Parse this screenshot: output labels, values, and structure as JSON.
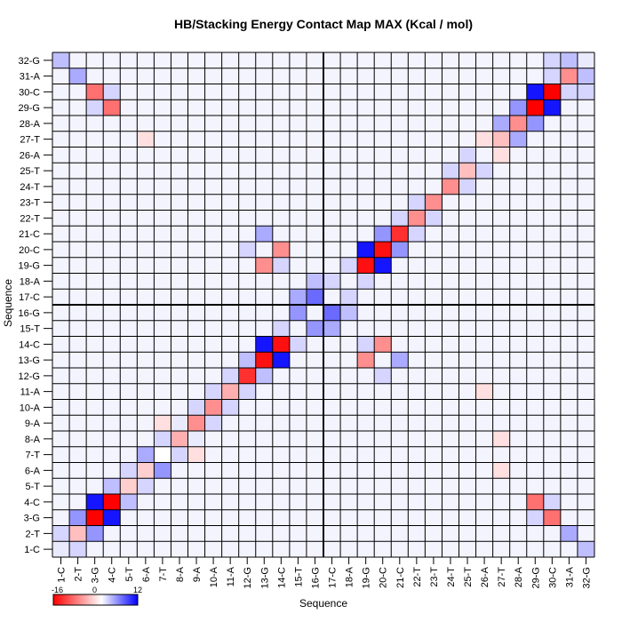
{
  "chart_data": {
    "type": "heatmap",
    "title": "HB/Stacking Energy Contact Map MAX (Kcal / mol)",
    "xlabel": "Sequence",
    "ylabel": "Sequence",
    "labels": [
      "1-C",
      "2-T",
      "3-G",
      "4-C",
      "5-T",
      "6-A",
      "7-T",
      "8-A",
      "9-A",
      "10-A",
      "11-A",
      "12-G",
      "13-G",
      "14-C",
      "15-T",
      "16-G",
      "17-C",
      "18-A",
      "19-G",
      "20-C",
      "21-C",
      "22-T",
      "23-T",
      "24-T",
      "25-T",
      "26-A",
      "27-T",
      "28-A",
      "29-G",
      "30-C",
      "31-A",
      "32-G"
    ],
    "x_tick_labels": [
      "1-C",
      "2-T",
      "3-G",
      "4-C",
      "5-T",
      "6-A",
      "7-T",
      "8-A",
      "9-A",
      "10-A",
      "11-A",
      "12-G",
      "13-G",
      "14-C",
      "15-T",
      "16-G",
      "17-C",
      "18-A",
      "19-G",
      "20-C",
      "21-C",
      "22-T",
      "23-T",
      "24-T",
      "25-T",
      "26-A",
      "27-T",
      "28-A",
      "29-G",
      "30-C",
      "31-A",
      "32-G"
    ],
    "x_tick_label_3": "3-G",
    "colorbar": {
      "min": -16,
      "mid": 0,
      "max": 12,
      "min_label": "-16",
      "mid_label": "0",
      "max_label": "12"
    },
    "colors": {
      "negative": "#ff0000",
      "zero": "#ffffff",
      "positive": "#0000ff",
      "background": "#f4f4ff",
      "grid": "#000000"
    },
    "background_value": 0.5,
    "grid": true,
    "cells": [
      [
        3,
        3,
        -16
      ],
      [
        4,
        4,
        -16
      ],
      [
        3,
        4,
        11
      ],
      [
        4,
        3,
        11
      ],
      [
        29,
        29,
        -16
      ],
      [
        30,
        30,
        -16
      ],
      [
        29,
        30,
        11
      ],
      [
        30,
        29,
        11
      ],
      [
        13,
        13,
        -15
      ],
      [
        14,
        14,
        -15
      ],
      [
        13,
        14,
        11
      ],
      [
        14,
        13,
        11
      ],
      [
        19,
        19,
        -15
      ],
      [
        20,
        20,
        -15
      ],
      [
        19,
        20,
        11
      ],
      [
        20,
        19,
        11
      ],
      [
        12,
        12,
        -13
      ],
      [
        21,
        21,
        -13
      ],
      [
        3,
        30,
        -9
      ],
      [
        30,
        3,
        -9
      ],
      [
        4,
        29,
        -9
      ],
      [
        29,
        4,
        -9
      ],
      [
        13,
        19,
        -7
      ],
      [
        19,
        13,
        -7
      ],
      [
        14,
        20,
        -7
      ],
      [
        20,
        14,
        -7
      ],
      [
        10,
        10,
        -7
      ],
      [
        11,
        11,
        -5
      ],
      [
        9,
        9,
        -7
      ],
      [
        8,
        8,
        -5
      ],
      [
        22,
        22,
        -7
      ],
      [
        23,
        23,
        -7
      ],
      [
        24,
        24,
        -7
      ],
      [
        25,
        25,
        -4
      ],
      [
        27,
        27,
        -4
      ],
      [
        28,
        28,
        -7
      ],
      [
        31,
        31,
        -7
      ],
      [
        2,
        2,
        -4
      ],
      [
        5,
        5,
        -3
      ],
      [
        6,
        6,
        -3
      ],
      [
        1,
        1,
        1
      ],
      [
        32,
        32,
        1
      ],
      [
        1,
        32,
        3
      ],
      [
        32,
        1,
        3
      ],
      [
        2,
        31,
        4
      ],
      [
        31,
        2,
        4
      ],
      [
        3,
        2,
        5
      ],
      [
        2,
        3,
        5
      ],
      [
        29,
        28,
        5
      ],
      [
        28,
        29,
        5
      ],
      [
        31,
        32,
        3
      ],
      [
        32,
        31,
        3
      ],
      [
        4,
        5,
        3
      ],
      [
        5,
        4,
        3
      ],
      [
        5,
        6,
        5
      ],
      [
        6,
        7,
        5
      ],
      [
        7,
        6,
        4
      ],
      [
        7,
        7,
        0
      ],
      [
        16,
        17,
        7
      ],
      [
        17,
        16,
        7
      ],
      [
        15,
        16,
        5
      ],
      [
        16,
        15,
        5
      ],
      [
        15,
        17,
        4
      ],
      [
        17,
        15,
        4
      ],
      [
        12,
        13,
        3
      ],
      [
        13,
        12,
        3
      ],
      [
        20,
        21,
        5
      ],
      [
        21,
        20,
        5
      ],
      [
        14,
        15,
        2
      ],
      [
        15,
        14,
        2
      ],
      [
        13,
        21,
        4
      ],
      [
        21,
        13,
        4
      ],
      [
        12,
        20,
        2
      ],
      [
        20,
        12,
        2
      ],
      [
        26,
        27,
        -2
      ],
      [
        27,
        26,
        -2
      ],
      [
        6,
        27,
        -2
      ],
      [
        27,
        6,
        -2
      ],
      [
        7,
        9,
        -2
      ],
      [
        9,
        7,
        -2
      ],
      [
        8,
        27,
        -2
      ],
      [
        11,
        26,
        -2
      ],
      [
        27,
        28,
        4
      ],
      [
        28,
        27,
        4
      ],
      [
        25,
        26,
        2
      ],
      [
        26,
        25,
        2
      ],
      [
        19,
        14,
        2
      ],
      [
        14,
        19,
        2
      ],
      [
        18,
        19,
        2
      ],
      [
        19,
        18,
        2
      ],
      [
        16,
        18,
        3
      ],
      [
        18,
        16,
        3
      ],
      [
        17,
        18,
        2
      ],
      [
        18,
        17,
        2
      ],
      [
        1,
        2,
        2
      ],
      [
        2,
        1,
        2
      ],
      [
        3,
        29,
        2
      ],
      [
        29,
        3,
        2
      ],
      [
        4,
        30,
        2
      ],
      [
        30,
        4,
        2
      ],
      [
        30,
        31,
        2
      ],
      [
        31,
        30,
        2
      ],
      [
        30,
        32,
        2
      ],
      [
        32,
        30,
        2
      ],
      [
        22,
        21,
        2
      ],
      [
        21,
        22,
        2
      ],
      [
        23,
        22,
        2
      ],
      [
        22,
        23,
        2
      ],
      [
        24,
        25,
        2
      ],
      [
        25,
        24,
        2
      ],
      [
        10,
        11,
        2
      ],
      [
        11,
        10,
        2
      ],
      [
        9,
        10,
        2
      ],
      [
        10,
        9,
        2
      ],
      [
        8,
        9,
        1
      ],
      [
        9,
        8,
        1
      ],
      [
        11,
        12,
        2
      ],
      [
        12,
        11,
        2
      ],
      [
        6,
        5,
        2
      ],
      [
        5,
        6,
        2
      ],
      [
        7,
        8,
        2
      ],
      [
        8,
        7,
        2
      ]
    ]
  }
}
